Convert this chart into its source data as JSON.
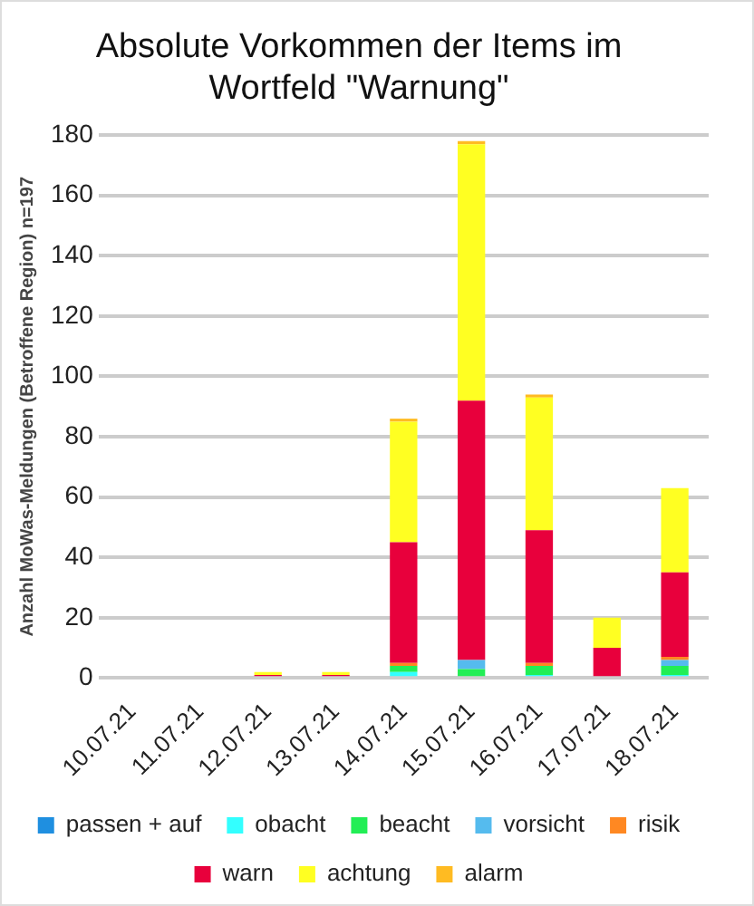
{
  "chart_data": {
    "type": "bar",
    "title": [
      "Absolute Vorkommen der Items im",
      "Wortfeld \"Warnung\""
    ],
    "ylabel": "Anzahl MoWas-Meldungen (Betroffene Region) n=197",
    "categories": [
      "10.07.21",
      "11.07.21",
      "12.07.21",
      "13.07.21",
      "14.07.21",
      "15.07.21",
      "16.07.21",
      "17.07.21",
      "18.07.21"
    ],
    "stacked": true,
    "ylim": [
      0,
      180
    ],
    "yticks": [
      0,
      20,
      40,
      60,
      80,
      100,
      120,
      140,
      160,
      180
    ],
    "grid": "y",
    "legend": "bottom",
    "series": [
      {
        "name": "passen + auf",
        "color": "#1f8fe0",
        "values": [
          0,
          0,
          0,
          0,
          0,
          0,
          0,
          0,
          0
        ]
      },
      {
        "name": "obacht",
        "color": "#33ffff",
        "values": [
          0,
          0,
          0,
          0,
          2,
          0,
          1,
          0,
          1
        ]
      },
      {
        "name": "beacht",
        "color": "#22ee55",
        "values": [
          0,
          0,
          0,
          0,
          2,
          3,
          3,
          0,
          3
        ]
      },
      {
        "name": "vorsicht",
        "color": "#55bbee",
        "values": [
          0,
          0,
          0,
          0,
          0,
          3,
          0,
          0,
          2
        ]
      },
      {
        "name": "risik",
        "color": "#ff8822",
        "values": [
          0,
          0,
          0,
          0,
          1,
          0,
          1,
          0,
          1
        ]
      },
      {
        "name": "warn",
        "color": "#e8003c",
        "values": [
          0,
          0,
          1,
          1,
          40,
          86,
          44,
          10,
          28
        ]
      },
      {
        "name": "achtung",
        "color": "#ffff22",
        "values": [
          0,
          0,
          1,
          1,
          40,
          85,
          44,
          10,
          28
        ]
      },
      {
        "name": "alarm",
        "color": "#ffbb22",
        "values": [
          0,
          0,
          0,
          0,
          1,
          1,
          1,
          0,
          0
        ]
      }
    ]
  }
}
